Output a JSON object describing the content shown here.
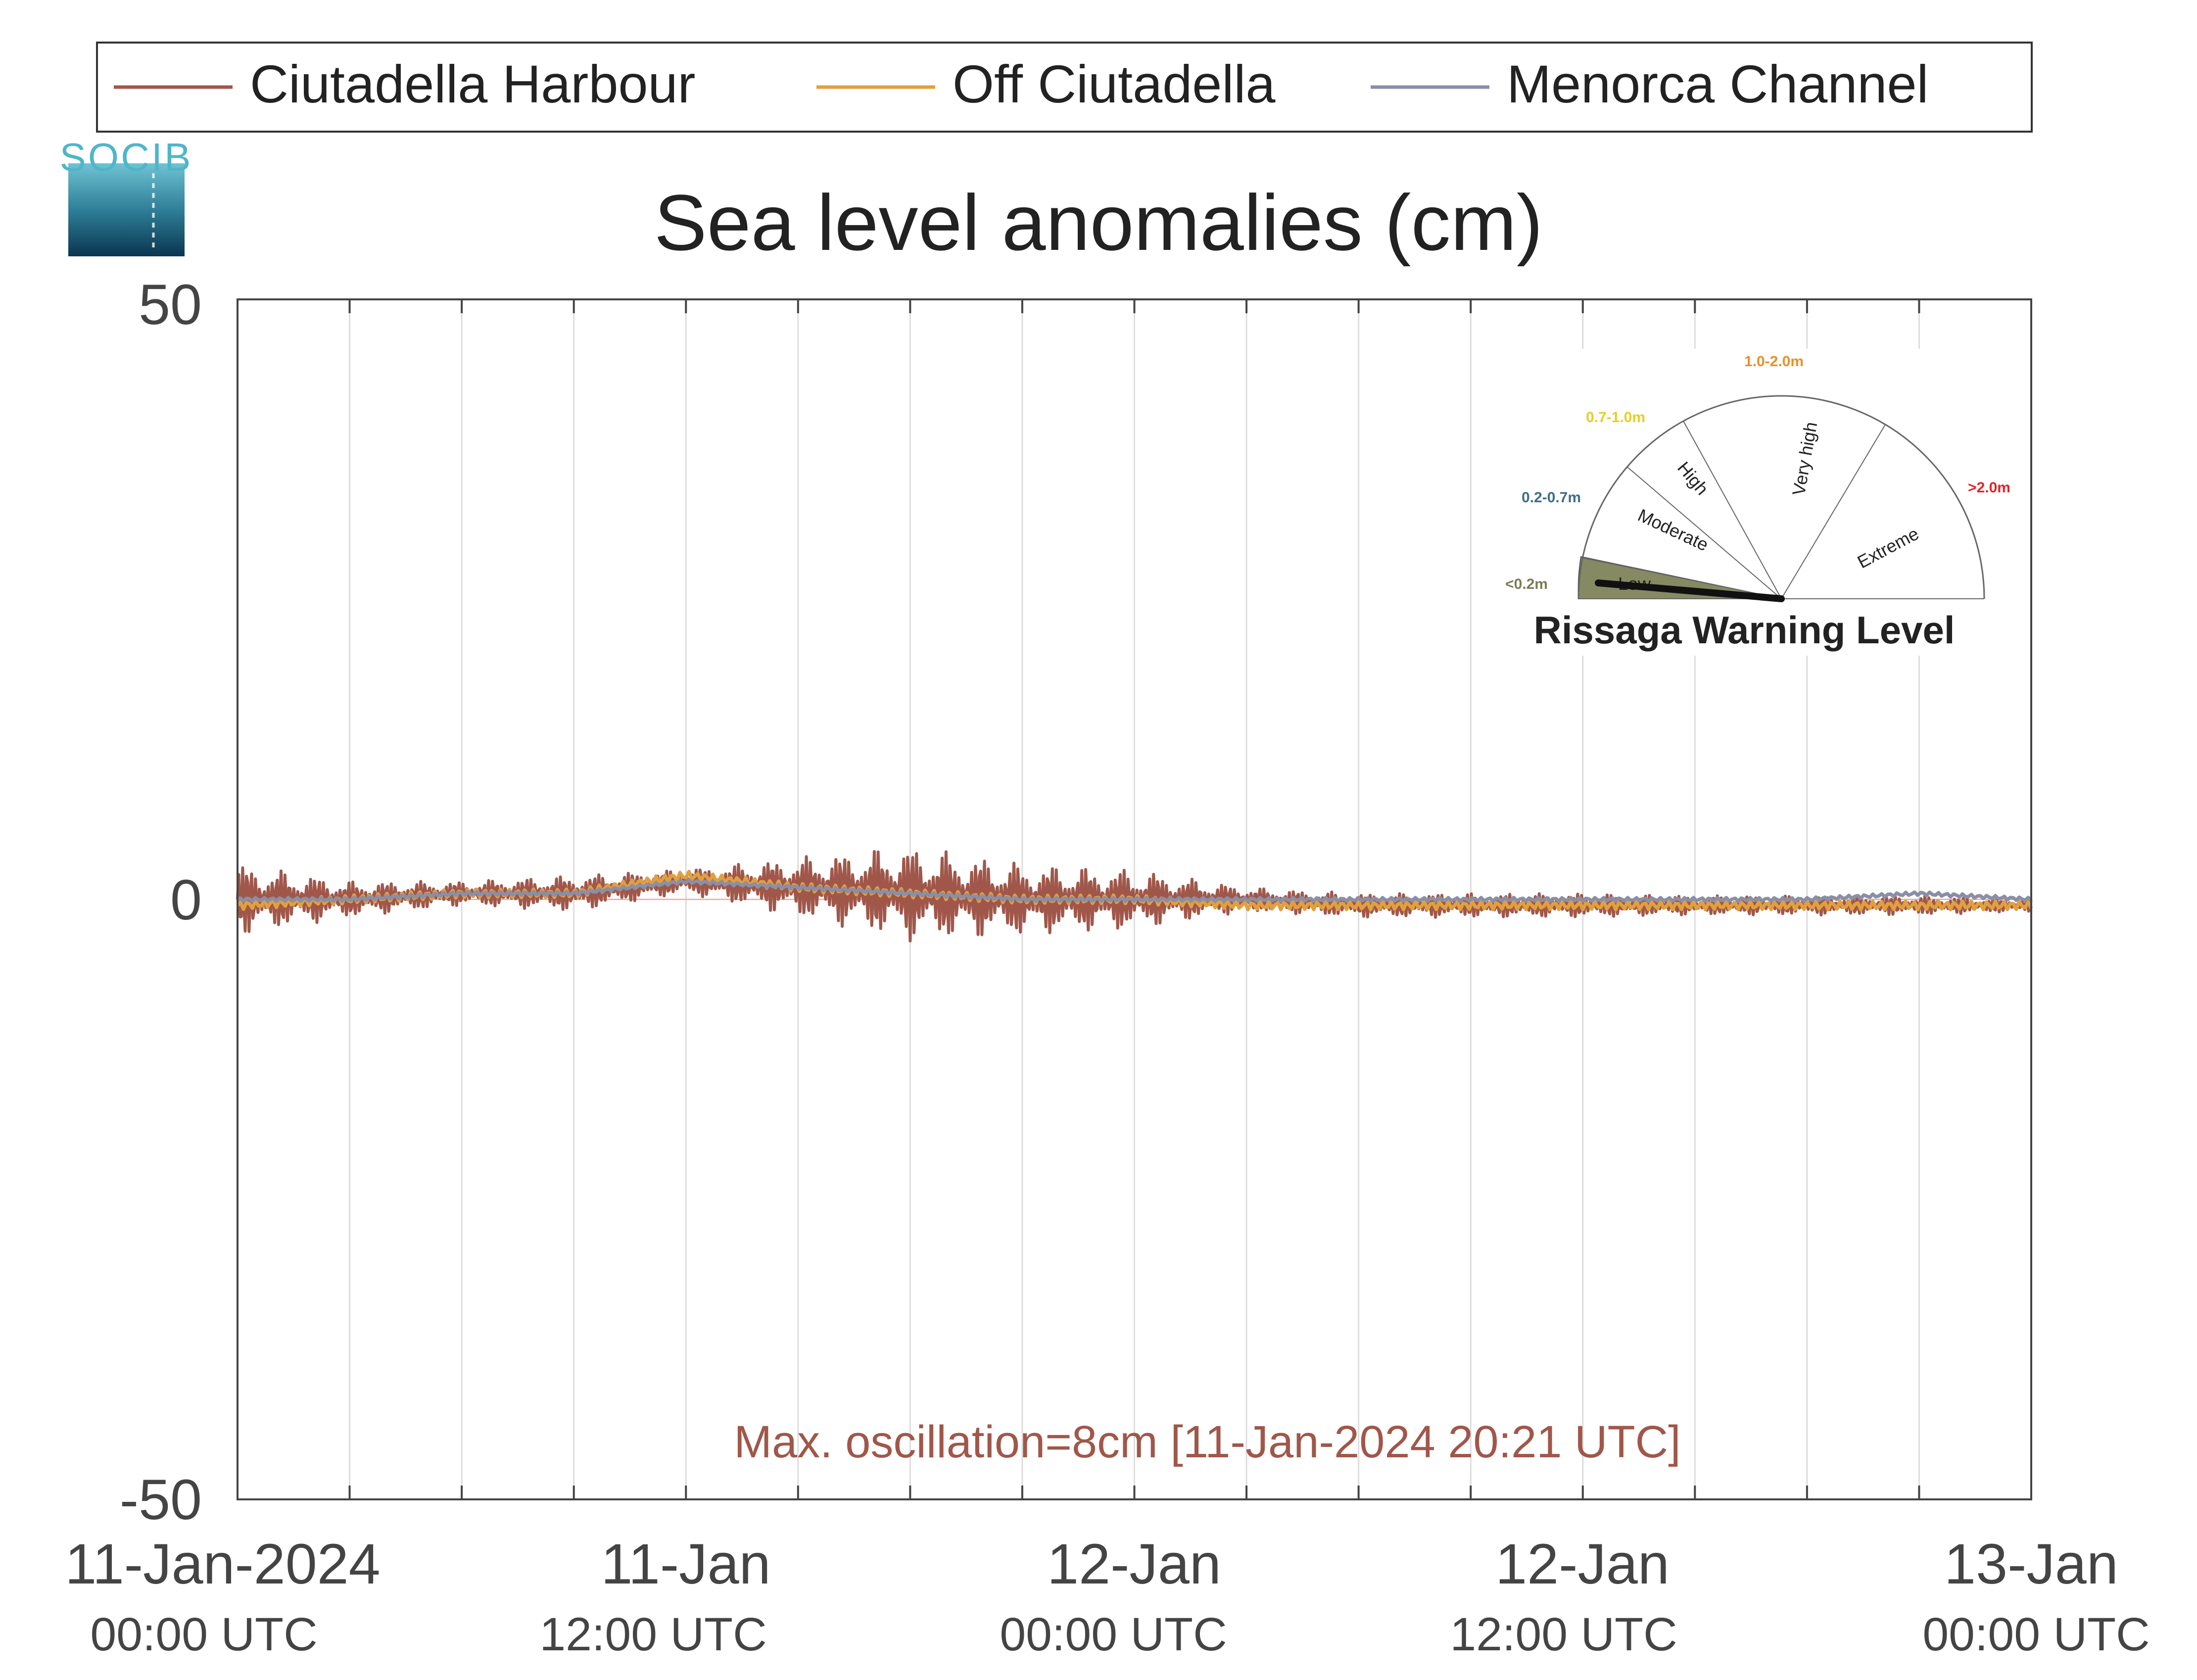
{
  "logo": {
    "text": "SOCIB"
  },
  "legend": [
    {
      "name": "Ciutadella Harbour",
      "color": "#a0574a"
    },
    {
      "name": "Off Ciutadella",
      "color": "#e0a040"
    },
    {
      "name": "Menorca Channel",
      "color": "#8a8fa6"
    }
  ],
  "chart_data": {
    "type": "line",
    "title": "Sea level anomalies (cm)",
    "xlabel": "",
    "ylabel": "",
    "ylim": [
      -50,
      50
    ],
    "xlim": [
      "2024-01-11 00:00",
      "2024-01-13 00:00"
    ],
    "grid": "vertical lines every 3 hours",
    "legend_placement": "top, above plot",
    "yticks": [
      "50",
      "0",
      "-50"
    ],
    "xticks": [
      {
        "x": "2024-01-11 00:00",
        "label": "11-Jan-2024",
        "sublabel": "00:00 UTC"
      },
      {
        "x": "2024-01-11 12:00",
        "label": "11-Jan",
        "sublabel": "12:00 UTC"
      },
      {
        "x": "2024-01-12 00:00",
        "label": "12-Jan",
        "sublabel": "00:00 UTC"
      },
      {
        "x": "2024-01-12 12:00",
        "label": "12-Jan",
        "sublabel": "12:00 UTC"
      },
      {
        "x": "2024-01-13 00:00",
        "label": "13-Jan",
        "sublabel": "00:00 UTC"
      }
    ],
    "series": [
      {
        "name": "Ciutadella Harbour",
        "color": "#a0574a",
        "x": [
          "2024-01-11 00:00",
          "2024-01-11 03:00",
          "2024-01-11 06:00",
          "2024-01-11 09:00",
          "2024-01-11 12:00",
          "2024-01-11 15:00",
          "2024-01-11 18:00",
          "2024-01-11 21:00",
          "2024-01-12 00:00",
          "2024-01-12 03:00",
          "2024-01-12 06:00",
          "2024-01-12 09:00",
          "2024-01-12 12:00",
          "2024-01-12 15:00",
          "2024-01-12 18:00",
          "2024-01-12 21:00",
          "2024-01-13 00:00"
        ],
        "y_mean": [
          0,
          0,
          0.5,
          0.5,
          1.5,
          1.0,
          0.5,
          0,
          0,
          0,
          -0.5,
          -0.5,
          -0.5,
          -0.5,
          -0.5,
          -0.5,
          -0.5
        ],
        "oscillation_amplitude": [
          3,
          1.5,
          1,
          1.5,
          1,
          2.5,
          4,
          3,
          2.5,
          1,
          1,
          1,
          1,
          0.8,
          0.8,
          0.8,
          0.5
        ]
      },
      {
        "name": "Off Ciutadella",
        "color": "#e0a040",
        "x": [
          "2024-01-11 00:00",
          "2024-01-11 03:00",
          "2024-01-11 06:00",
          "2024-01-11 09:00",
          "2024-01-11 12:00",
          "2024-01-11 15:00",
          "2024-01-11 18:00",
          "2024-01-11 21:00",
          "2024-01-12 00:00",
          "2024-01-12 03:00",
          "2024-01-12 06:00",
          "2024-01-12 09:00",
          "2024-01-12 12:00",
          "2024-01-12 15:00",
          "2024-01-12 18:00",
          "2024-01-12 21:00",
          "2024-01-13 00:00"
        ],
        "y": [
          -0.5,
          0,
          0.5,
          0.5,
          2.0,
          1.0,
          0.5,
          0,
          0,
          -0.5,
          -0.5,
          -0.5,
          -0.5,
          -0.5,
          -0.5,
          -0.5,
          -0.5
        ]
      },
      {
        "name": "Menorca Channel",
        "color": "#8a8fa6",
        "x": [
          "2024-01-11 00:00",
          "2024-01-11 03:00",
          "2024-01-11 06:00",
          "2024-01-11 09:00",
          "2024-01-11 12:00",
          "2024-01-11 15:00",
          "2024-01-11 18:00",
          "2024-01-11 21:00",
          "2024-01-12 00:00",
          "2024-01-12 03:00",
          "2024-01-12 06:00",
          "2024-01-12 09:00",
          "2024-01-12 12:00",
          "2024-01-12 15:00",
          "2024-01-12 18:00",
          "2024-01-12 21:00",
          "2024-01-13 00:00"
        ],
        "y": [
          0,
          0,
          0.5,
          0.5,
          1.5,
          1.0,
          0.5,
          0,
          0,
          0,
          0,
          0,
          0,
          0,
          0,
          0.5,
          0
        ]
      }
    ],
    "annotation": {
      "text": "Max. oscillation=8cm [11-Jan-2024 20:21 UTC]",
      "color": "#a0574a"
    }
  },
  "gauge": {
    "title": "Rissaga Warning Level",
    "current_level": "Low",
    "sectors": [
      {
        "name": "Low",
        "range": "<0.2m",
        "range_color": "#7a7d55",
        "fill": "#858a62"
      },
      {
        "name": "Moderate",
        "range": "0.2-0.7m",
        "range_color": "#3e6f86",
        "fill": "#ffffff"
      },
      {
        "name": "High",
        "range": "0.7-1.0m",
        "range_color": "#e8cf23",
        "fill": "#ffffff"
      },
      {
        "name": "Very high",
        "range": "1.0-2.0m",
        "range_color": "#e8902a",
        "fill": "#ffffff"
      },
      {
        "name": "Extreme",
        "range": ">2.0m",
        "range_color": "#e3242b",
        "fill": "#ffffff"
      }
    ]
  }
}
